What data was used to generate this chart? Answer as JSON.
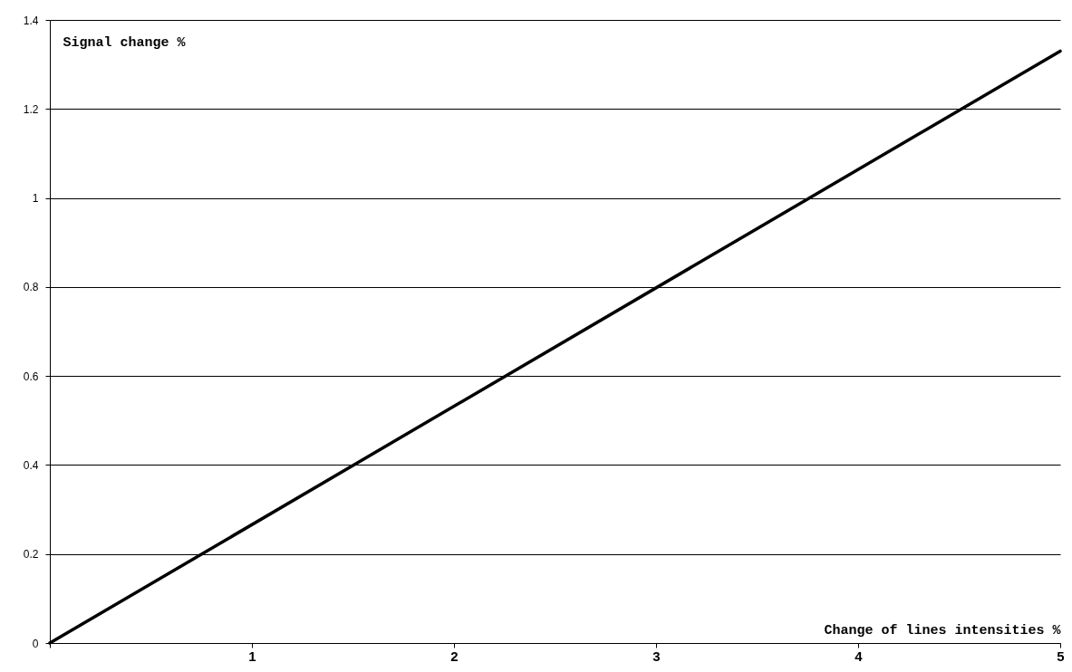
{
  "chart_data": {
    "type": "line",
    "xlabel": "Change of lines intensities %",
    "ylabel": "Signal change %",
    "x": [
      0,
      5
    ],
    "series": [
      {
        "color": "#000000",
        "values": [
          0,
          1.33
        ]
      }
    ],
    "xlim": [
      0,
      5
    ],
    "xticks": [
      {
        "value": 0,
        "label": null
      },
      1,
      2,
      3,
      4,
      5
    ],
    "ylim": [
      0,
      1.4
    ],
    "yticks": [
      0,
      0.2,
      0.4,
      0.6,
      0.8,
      1,
      1.2,
      1.4
    ],
    "grid": "y",
    "marker": "none",
    "line_style": "solid"
  }
}
